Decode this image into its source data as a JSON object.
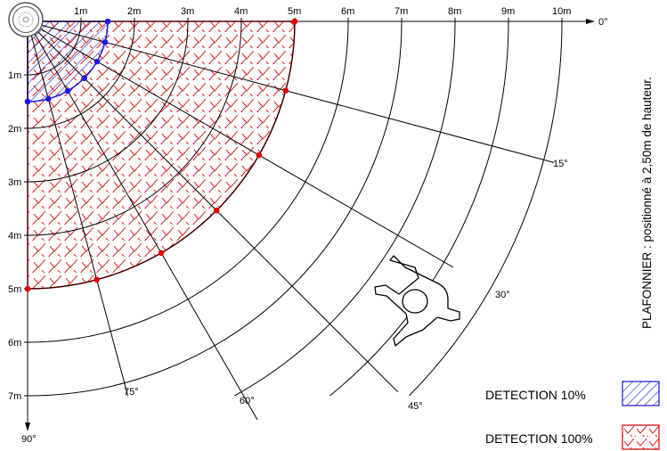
{
  "diagram": {
    "title_vertical": "PLAFONNIER : positionné à 2,50m de hauteur.",
    "distance_labels": [
      "1m",
      "2m",
      "3m",
      "4m",
      "5m",
      "6m",
      "7m",
      "8m",
      "9m",
      "10m"
    ],
    "vertical_distance_labels": [
      "1m",
      "2m",
      "3m",
      "4m",
      "5m",
      "6m",
      "7m"
    ],
    "angle_labels": {
      "a0": "0°",
      "a15": "15°",
      "a30": "30°",
      "a45": "45°",
      "a60": "60°",
      "a75": "75°",
      "a90": "90°"
    },
    "detection_zones": [
      {
        "name": "DETECTION 10%",
        "radius_m": 1.5,
        "color": "#1a1adb",
        "pattern": "diagonal-hatch"
      },
      {
        "name": "DETECTION 100%",
        "radius_m": 5,
        "color": "#e00000",
        "pattern": "chevron"
      }
    ],
    "colors": {
      "line": "#000000",
      "blue": "#1a1adb",
      "red": "#e00000"
    }
  },
  "legend": {
    "item_10": "DETECTION 10%",
    "item_100": "DETECTION 100%"
  },
  "icons": [
    "ceiling-sensor-icon",
    "person-icon"
  ]
}
